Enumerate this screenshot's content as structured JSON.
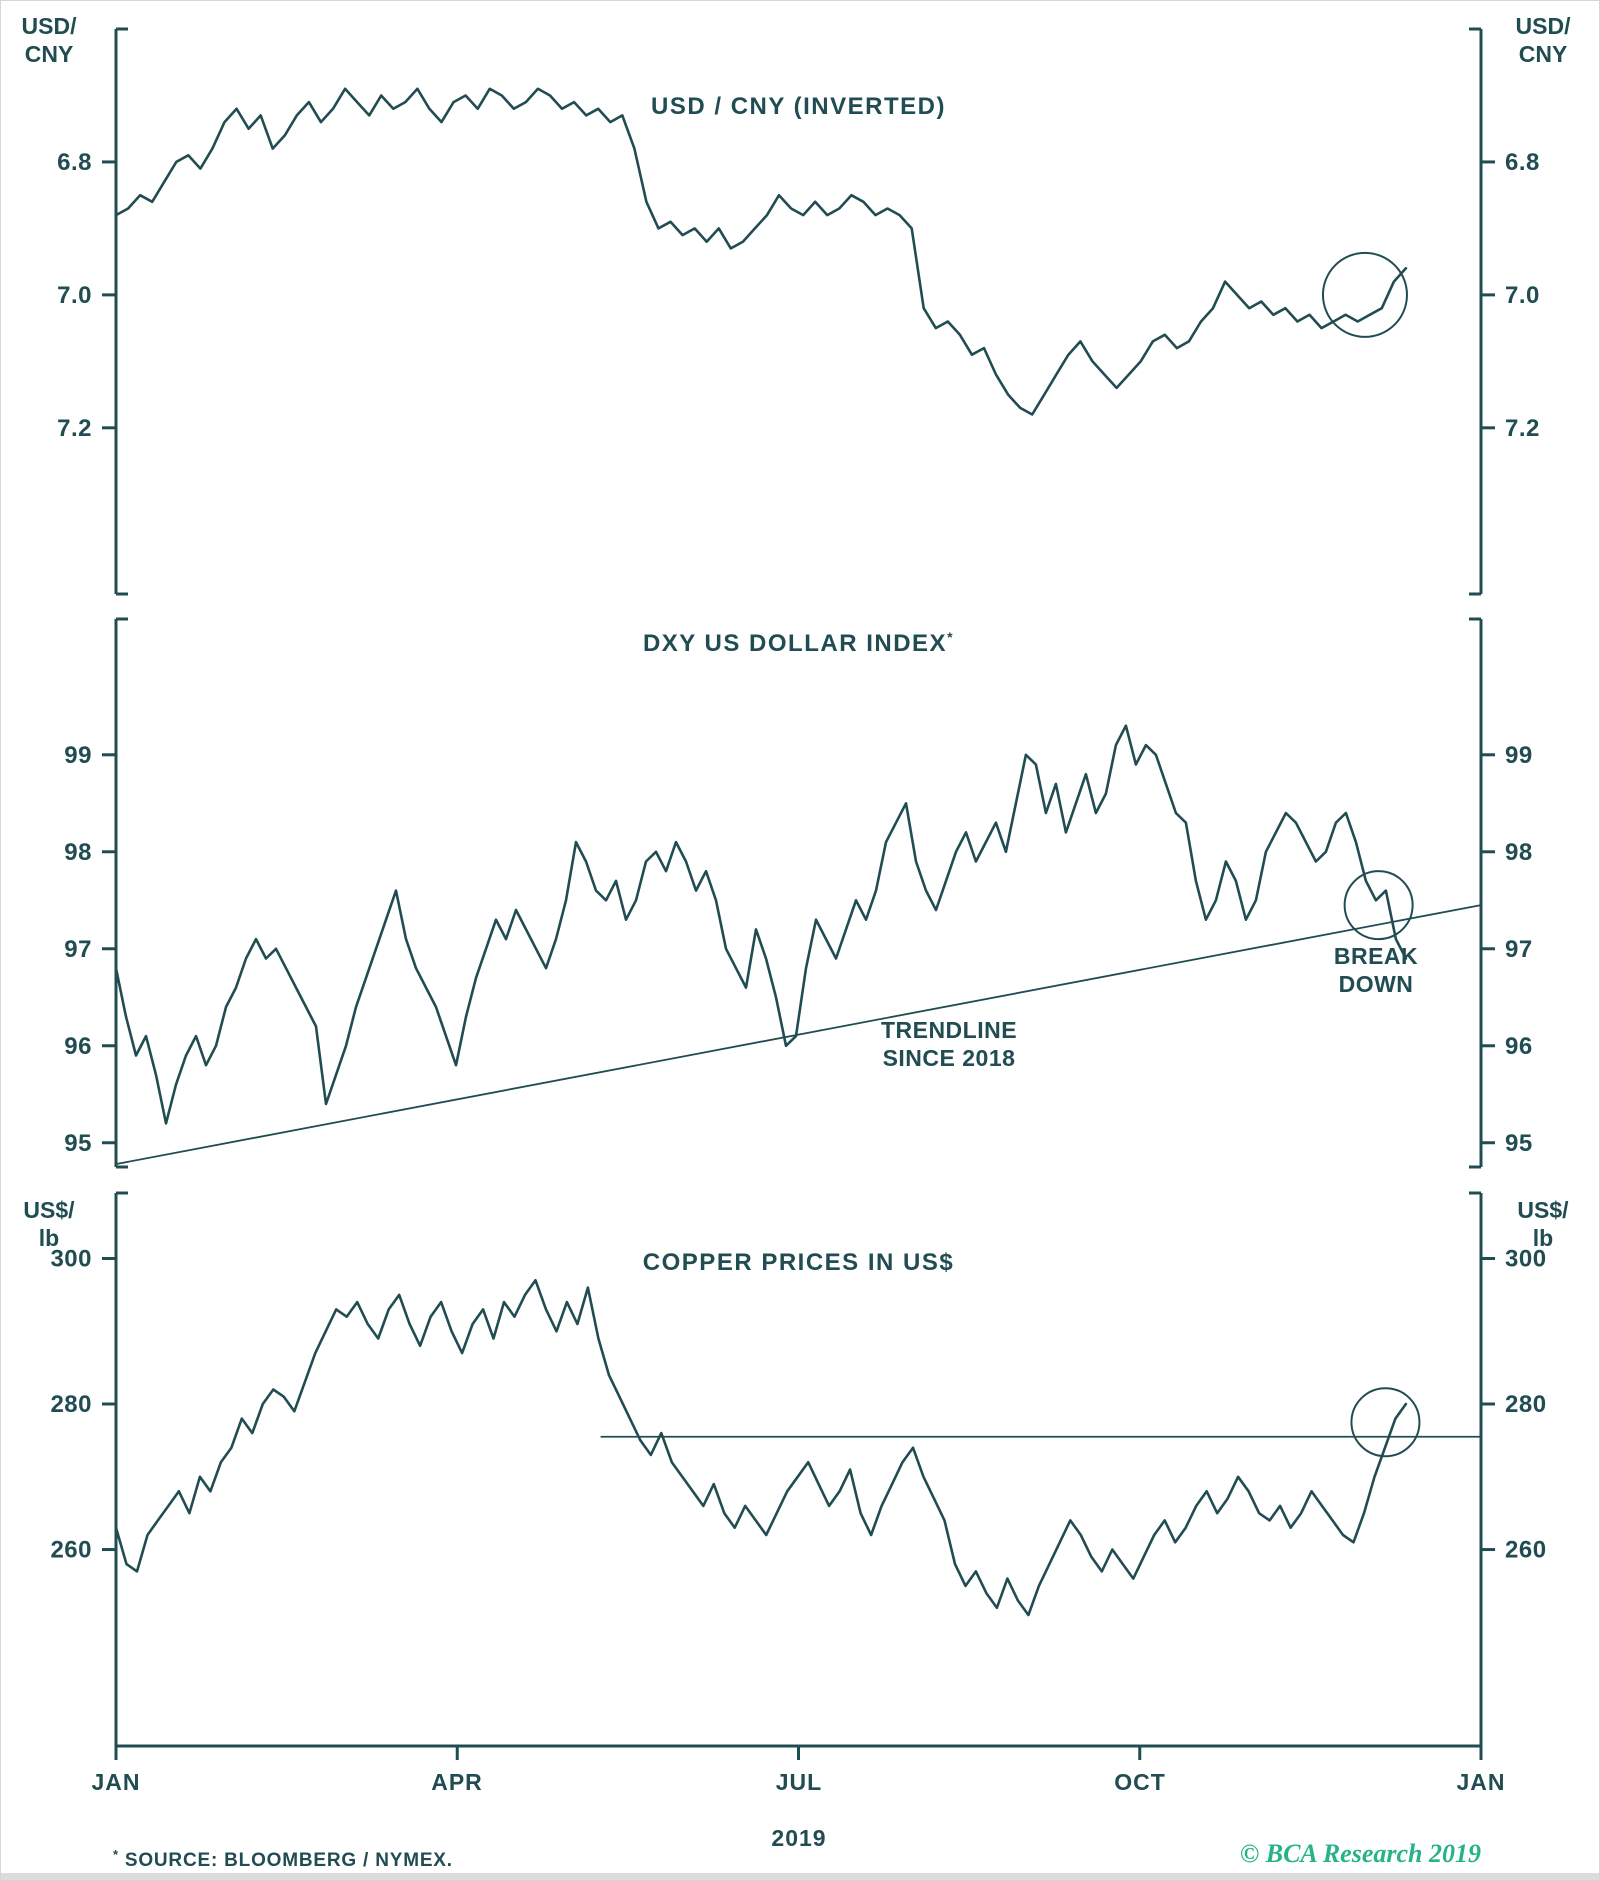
{
  "page": {
    "background": "#ffffff",
    "accent_color": "#214d52",
    "brand_color": "#27b389"
  },
  "x_axis": {
    "months": [
      "JAN",
      "APR",
      "JUL",
      "OCT",
      "JAN"
    ],
    "year": "2019"
  },
  "footer": {
    "footnote_symbol": "*",
    "footnote_text": "SOURCE: BLOOMBERG / NYMEX.",
    "copyright": "© BCA Research 2019"
  },
  "chart_data": [
    {
      "type": "line",
      "title": "USD / CNY (INVERTED)",
      "y_axis": {
        "unit_lines": [
          "USD/",
          "CNY"
        ],
        "ticks": [
          6.8,
          7.0,
          7.2
        ],
        "tick_labels": [
          "6.8",
          "7.0",
          "7.2"
        ],
        "inverted": true,
        "value_top": 6.6,
        "value_bottom": 7.45,
        "ylim": [
          6.6,
          7.45
        ]
      },
      "x_range": [
        "JAN 2019",
        "JAN 2020"
      ],
      "series_t_end": 0.945,
      "series": [
        {
          "name": "USD/CNY",
          "values": [
            6.88,
            6.87,
            6.85,
            6.86,
            6.83,
            6.8,
            6.79,
            6.81,
            6.78,
            6.74,
            6.72,
            6.75,
            6.73,
            6.78,
            6.76,
            6.73,
            6.71,
            6.74,
            6.72,
            6.69,
            6.71,
            6.73,
            6.7,
            6.72,
            6.71,
            6.69,
            6.72,
            6.74,
            6.71,
            6.7,
            6.72,
            6.69,
            6.7,
            6.72,
            6.71,
            6.69,
            6.7,
            6.72,
            6.71,
            6.73,
            6.72,
            6.74,
            6.73,
            6.78,
            6.86,
            6.9,
            6.89,
            6.91,
            6.9,
            6.92,
            6.9,
            6.93,
            6.92,
            6.9,
            6.88,
            6.85,
            6.87,
            6.88,
            6.86,
            6.88,
            6.87,
            6.85,
            6.86,
            6.88,
            6.87,
            6.88,
            6.9,
            7.02,
            7.05,
            7.04,
            7.06,
            7.09,
            7.08,
            7.12,
            7.15,
            7.17,
            7.18,
            7.15,
            7.12,
            7.09,
            7.07,
            7.1,
            7.12,
            7.14,
            7.12,
            7.1,
            7.07,
            7.06,
            7.08,
            7.07,
            7.04,
            7.02,
            6.98,
            7.0,
            7.02,
            7.01,
            7.03,
            7.02,
            7.04,
            7.03,
            7.05,
            7.04,
            7.03,
            7.04,
            7.03,
            7.02,
            6.98,
            6.96
          ]
        }
      ],
      "annotations": {
        "circle": {
          "t": 0.915,
          "value": 7.0,
          "radius": 42
        }
      }
    },
    {
      "type": "line",
      "title": "DXY US DOLLAR INDEX",
      "title_suffix": "*",
      "y_axis": {
        "ticks": [
          95,
          96,
          97,
          98,
          99
        ],
        "tick_labels": [
          "95",
          "96",
          "97",
          "98",
          "99"
        ],
        "inverted": false,
        "value_top": 100.4,
        "value_bottom": 94.75,
        "ylim": [
          94.75,
          100.4
        ]
      },
      "x_range": [
        "JAN 2019",
        "JAN 2020"
      ],
      "series_t_end": 0.945,
      "series": [
        {
          "name": "DXY US Dollar Index",
          "values": [
            96.8,
            96.3,
            95.9,
            96.1,
            95.7,
            95.2,
            95.6,
            95.9,
            96.1,
            95.8,
            96.0,
            96.4,
            96.6,
            96.9,
            97.1,
            96.9,
            97.0,
            96.8,
            96.6,
            96.4,
            96.2,
            95.4,
            95.7,
            96.0,
            96.4,
            96.7,
            97.0,
            97.3,
            97.6,
            97.1,
            96.8,
            96.6,
            96.4,
            96.1,
            95.8,
            96.3,
            96.7,
            97.0,
            97.3,
            97.1,
            97.4,
            97.2,
            97.0,
            96.8,
            97.1,
            97.5,
            98.1,
            97.9,
            97.6,
            97.5,
            97.7,
            97.3,
            97.5,
            97.9,
            98.0,
            97.8,
            98.1,
            97.9,
            97.6,
            97.8,
            97.5,
            97.0,
            96.8,
            96.6,
            97.2,
            96.9,
            96.5,
            96.0,
            96.1,
            96.8,
            97.3,
            97.1,
            96.9,
            97.2,
            97.5,
            97.3,
            97.6,
            98.1,
            98.3,
            98.5,
            97.9,
            97.6,
            97.4,
            97.7,
            98.0,
            98.2,
            97.9,
            98.1,
            98.3,
            98.0,
            98.5,
            99.0,
            98.9,
            98.4,
            98.7,
            98.2,
            98.5,
            98.8,
            98.4,
            98.6,
            99.1,
            99.3,
            98.9,
            99.1,
            99.0,
            98.7,
            98.4,
            98.3,
            97.7,
            97.3,
            97.5,
            97.9,
            97.7,
            97.3,
            97.5,
            98.0,
            98.2,
            98.4,
            98.3,
            98.1,
            97.9,
            98.0,
            98.3,
            98.4,
            98.1,
            97.7,
            97.5,
            97.6,
            97.1,
            96.9
          ]
        }
      ],
      "trendline": {
        "t0": 0,
        "v0": 94.78,
        "t1": 1,
        "v1": 97.45,
        "label": "TRENDLINE SINCE 2018"
      },
      "annotations": {
        "circle": {
          "t": 0.925,
          "value": 97.45,
          "radius": 34
        },
        "trendline_label": [
          "TRENDLINE",
          "SINCE 2018"
        ],
        "breakdown_label": [
          "BREAK",
          "DOWN"
        ]
      }
    },
    {
      "type": "line",
      "title": "COPPER PRICES IN US$",
      "y_axis": {
        "unit_lines": [
          "US$/",
          "lb"
        ],
        "ticks": [
          300,
          280,
          260
        ],
        "tick_labels": [
          "300",
          "280",
          "260"
        ],
        "inverted": false,
        "value_top": 309,
        "value_bottom": 233,
        "ylim": [
          233,
          309
        ]
      },
      "x_range": [
        "JAN 2019",
        "JAN 2020"
      ],
      "series_t_end": 0.945,
      "series": [
        {
          "name": "Copper Price (US cents/lb)",
          "values": [
            263,
            258,
            257,
            262,
            264,
            266,
            268,
            265,
            270,
            268,
            272,
            274,
            278,
            276,
            280,
            282,
            281,
            279,
            283,
            287,
            290,
            293,
            292,
            294,
            291,
            289,
            293,
            295,
            291,
            288,
            292,
            294,
            290,
            287,
            291,
            293,
            289,
            294,
            292,
            295,
            297,
            293,
            290,
            294,
            291,
            296,
            289,
            284,
            281,
            278,
            275,
            273,
            276,
            272,
            270,
            268,
            266,
            269,
            265,
            263,
            266,
            264,
            262,
            265,
            268,
            270,
            272,
            269,
            266,
            268,
            271,
            265,
            262,
            266,
            269,
            272,
            274,
            270,
            267,
            264,
            258,
            255,
            257,
            254,
            252,
            256,
            253,
            251,
            255,
            258,
            261,
            264,
            262,
            259,
            257,
            260,
            258,
            256,
            259,
            262,
            264,
            261,
            263,
            266,
            268,
            265,
            267,
            270,
            268,
            265,
            264,
            266,
            263,
            265,
            268,
            266,
            264,
            262,
            261,
            265,
            270,
            274,
            278,
            280
          ]
        }
      ],
      "hline": {
        "value": 275.5,
        "t0": 0.355,
        "t1": 1.0
      },
      "annotations": {
        "circle": {
          "t": 0.93,
          "value": 277.5,
          "radius": 34
        }
      }
    }
  ]
}
